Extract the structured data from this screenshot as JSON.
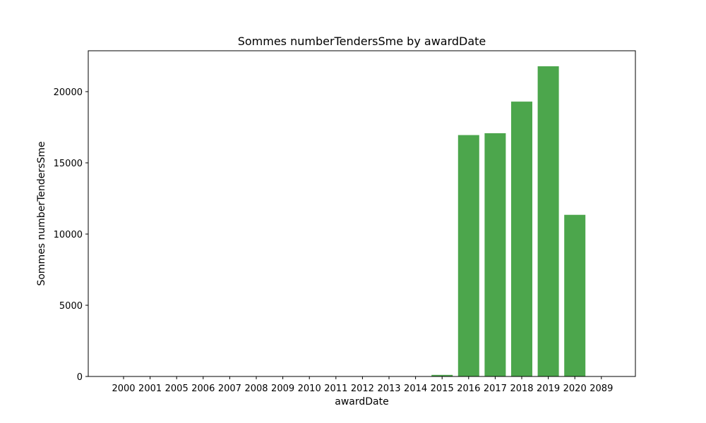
{
  "chart_data": {
    "type": "bar",
    "title": "Sommes numberTendersSme by awardDate",
    "xlabel": "awardDate",
    "ylabel": "Sommes numberTendersSme",
    "categories": [
      "2000",
      "2001",
      "2005",
      "2006",
      "2007",
      "2008",
      "2009",
      "2010",
      "2011",
      "2012",
      "2013",
      "2014",
      "2015",
      "2016",
      "2017",
      "2018",
      "2019",
      "2020",
      "2089"
    ],
    "values": [
      1,
      1,
      2,
      1,
      1,
      2,
      1,
      3,
      2,
      4,
      5,
      20,
      110,
      16950,
      17080,
      19300,
      21780,
      11350,
      1
    ],
    "ylim": [
      0,
      22870
    ],
    "yticks": [
      0,
      5000,
      10000,
      15000,
      20000
    ],
    "bar_color": "#4ca64c",
    "grid": false
  }
}
